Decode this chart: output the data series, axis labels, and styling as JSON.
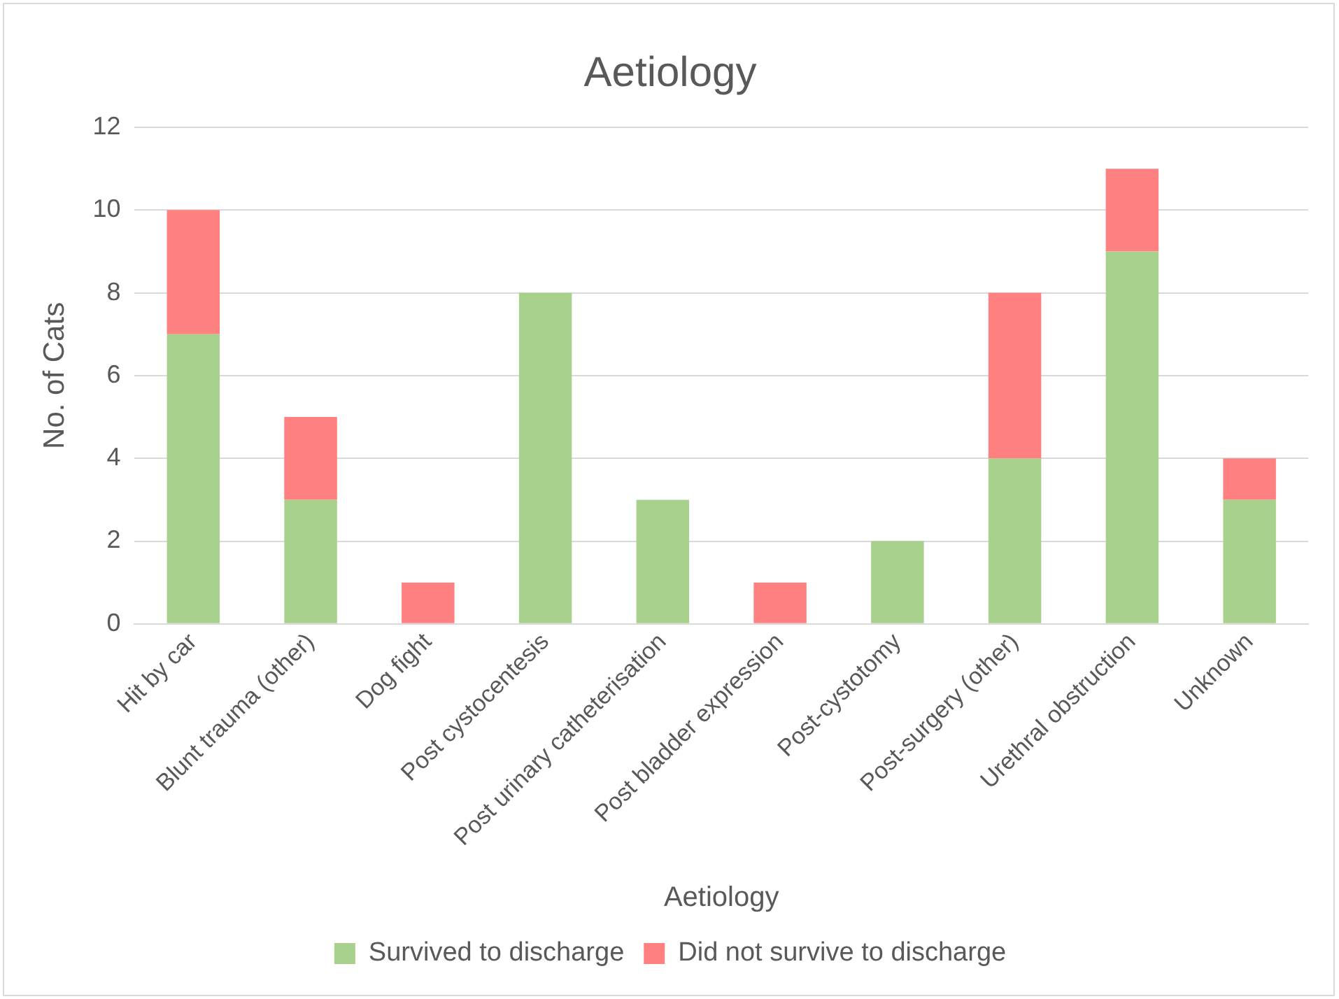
{
  "chart_data": {
    "type": "bar",
    "title": "Aetiology",
    "xlabel": "Aetiology",
    "ylabel": "No. of Cats",
    "categories": [
      "Hit by car",
      "Blunt trauma (other)",
      "Dog fight",
      "Post cystocentesis",
      "Post urinary catheterisation",
      "Post bladder expression",
      "Post-cystotomy",
      "Post-surgery (other)",
      "Urethral obstruction",
      "Unknown"
    ],
    "series": [
      {
        "name": "Survived to discharge",
        "color": "#a9d18e",
        "values": [
          7,
          3,
          0,
          8,
          3,
          0,
          2,
          4,
          9,
          3
        ]
      },
      {
        "name": "Did not survive to discharge",
        "color": "#ff8080",
        "values": [
          3,
          2,
          1,
          0,
          0,
          1,
          0,
          4,
          2,
          1
        ]
      }
    ],
    "stacked": true,
    "ylim": [
      0,
      12
    ],
    "yticks": [
      0,
      2,
      4,
      6,
      8,
      10,
      12
    ],
    "grid": "y",
    "legend": "bottom"
  }
}
